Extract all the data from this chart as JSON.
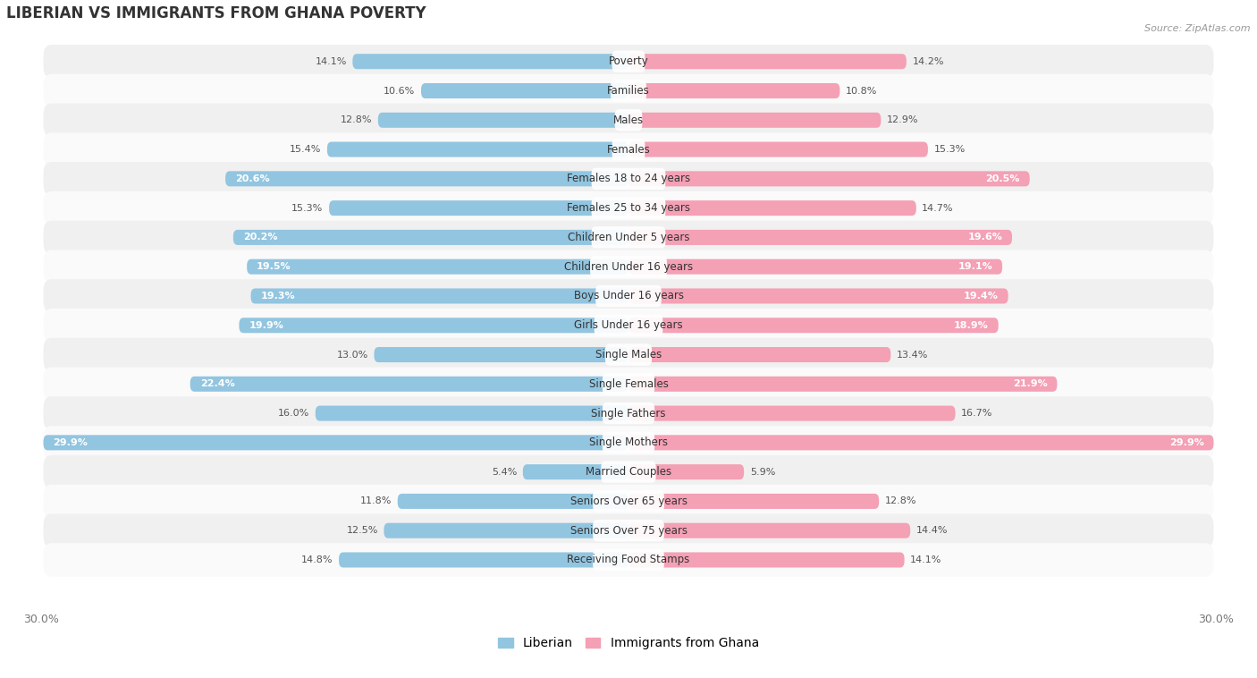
{
  "title": "LIBERIAN VS IMMIGRANTS FROM GHANA POVERTY",
  "source": "Source: ZipAtlas.com",
  "categories": [
    "Poverty",
    "Families",
    "Males",
    "Females",
    "Females 18 to 24 years",
    "Females 25 to 34 years",
    "Children Under 5 years",
    "Children Under 16 years",
    "Boys Under 16 years",
    "Girls Under 16 years",
    "Single Males",
    "Single Females",
    "Single Fathers",
    "Single Mothers",
    "Married Couples",
    "Seniors Over 65 years",
    "Seniors Over 75 years",
    "Receiving Food Stamps"
  ],
  "liberian": [
    14.1,
    10.6,
    12.8,
    15.4,
    20.6,
    15.3,
    20.2,
    19.5,
    19.3,
    19.9,
    13.0,
    22.4,
    16.0,
    29.9,
    5.4,
    11.8,
    12.5,
    14.8
  ],
  "ghana": [
    14.2,
    10.8,
    12.9,
    15.3,
    20.5,
    14.7,
    19.6,
    19.1,
    19.4,
    18.9,
    13.4,
    21.9,
    16.7,
    29.9,
    5.9,
    12.8,
    14.4,
    14.1
  ],
  "liberian_color": "#92C5E0",
  "ghana_color": "#F4A0B5",
  "liberian_label": "Liberian",
  "ghana_label": "Immigrants from Ghana",
  "xlim": 30.0,
  "bg_even": "#f0f0f0",
  "bg_odd": "#fafafa",
  "title_fontsize": 12,
  "label_fontsize": 8.5,
  "value_fontsize": 8,
  "inside_threshold": 18.0
}
